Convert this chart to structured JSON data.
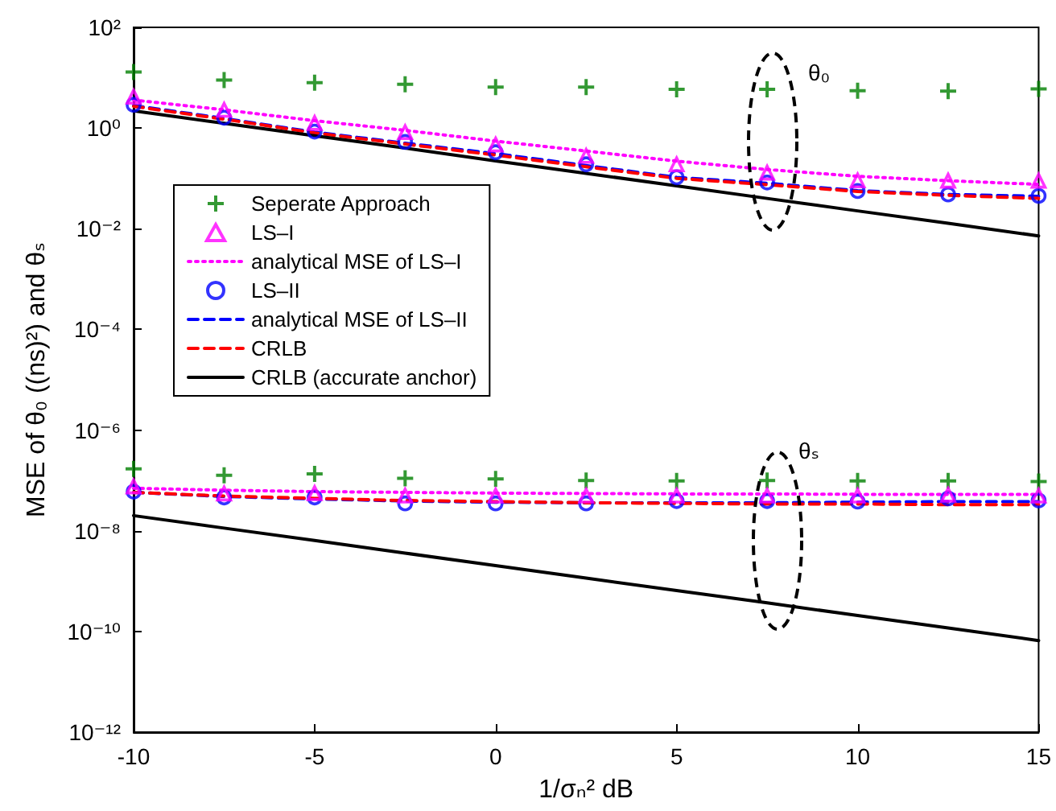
{
  "chart_data": {
    "type": "line",
    "xlabel": "1/σₙ² dB",
    "ylabel": "MSE of θ₀ ((ns)²) and θₛ",
    "x": [
      -10,
      -7.5,
      -5,
      -2.5,
      0,
      2.5,
      5,
      7.5,
      10,
      12.5,
      15
    ],
    "xlim": [
      -10,
      15
    ],
    "xticks": [
      -10,
      -5,
      0,
      5,
      10,
      15
    ],
    "log": "y",
    "ylim": [
      1e-12,
      100
    ],
    "yticks": [
      {
        "value": 1e-12,
        "label": "10⁻¹²"
      },
      {
        "value": 1e-10,
        "label": "10⁻¹⁰"
      },
      {
        "value": 1e-08,
        "label": "10⁻⁸"
      },
      {
        "value": 1e-06,
        "label": "10⁻⁶"
      },
      {
        "value": 0.0001,
        "label": "10⁻⁴"
      },
      {
        "value": 0.01,
        "label": "10⁻²"
      },
      {
        "value": 1,
        "label": "10⁰"
      },
      {
        "value": 100,
        "label": "10²"
      }
    ],
    "grid": false,
    "legend": "left",
    "annotations": [
      "θ₀",
      "θₛ"
    ],
    "series": [
      {
        "name": "Seperate Approach",
        "type": "scatter",
        "marker": "cross",
        "color": "#008000",
        "values": [
          13,
          9,
          8,
          7.4,
          6.5,
          6.5,
          5.9,
          5.9,
          5.5,
          5.4,
          6.0
        ]
      },
      {
        "name": "LS–I",
        "type": "scatter",
        "marker": "triangle",
        "color": "#ff00ff",
        "values": [
          4.2,
          2.3,
          1.26,
          0.83,
          0.47,
          0.28,
          0.19,
          0.13,
          0.091,
          0.09,
          0.09
        ]
      },
      {
        "name": "analytical MSE of LS–I",
        "line_style": "dotted",
        "color": "#ff00ff",
        "values": [
          3.6,
          2.3,
          1.4,
          0.9,
          0.55,
          0.35,
          0.22,
          0.15,
          0.11,
          0.09,
          0.076
        ]
      },
      {
        "name": "LS–II",
        "type": "scatter",
        "marker": "circle",
        "color": "#0000ff",
        "values": [
          2.9,
          1.6,
          0.85,
          0.53,
          0.33,
          0.19,
          0.105,
          0.083,
          0.056,
          0.048,
          0.045
        ]
      },
      {
        "name": "analytical MSE of LS–II",
        "line_style": "dashed",
        "color": "#0000ff",
        "values": [
          2.8,
          1.55,
          0.83,
          0.5,
          0.31,
          0.18,
          0.105,
          0.08,
          0.057,
          0.048,
          0.044
        ]
      },
      {
        "name": "CRLB",
        "line_style": "dashed",
        "color": "#ff0000",
        "values": [
          2.7,
          1.5,
          0.8,
          0.48,
          0.29,
          0.17,
          0.1,
          0.075,
          0.055,
          0.046,
          0.04
        ]
      },
      {
        "name": "CRLB (accurate anchor)",
        "line_style": "solid",
        "color": "#000000",
        "values": [
          2.2,
          1.24,
          0.7,
          0.4,
          0.223,
          0.126,
          0.071,
          0.04,
          0.0226,
          0.0128,
          0.0072
        ]
      },
      {
        "type": "scatter",
        "marker": "cross",
        "color": "#008000",
        "values": [
          1.7e-07,
          1.26e-07,
          1.35e-07,
          1.1e-07,
          1.07e-07,
          1e-07,
          9.8e-08,
          1e-07,
          9.8e-08,
          9.8e-08,
          9.5e-08
        ]
      },
      {
        "type": "scatter",
        "marker": "triangle",
        "color": "#ff00ff",
        "values": [
          7.6e-08,
          5.5e-08,
          5.6e-08,
          5e-08,
          5e-08,
          5e-08,
          5e-08,
          5e-08,
          5e-08,
          5.2e-08,
          5e-08
        ]
      },
      {
        "line_style": "dotted",
        "color": "#ff00ff",
        "values": [
          7e-08,
          6.4e-08,
          6e-08,
          5.8e-08,
          5.6e-08,
          5.5e-08,
          5.4e-08,
          5.4e-08,
          5.3e-08,
          5.3e-08,
          5.3e-08
        ]
      },
      {
        "type": "scatter",
        "marker": "circle",
        "color": "#0000ff",
        "values": [
          6e-08,
          4.6e-08,
          4.6e-08,
          3.5e-08,
          3.5e-08,
          3.5e-08,
          3.9e-08,
          3.9e-08,
          3.8e-08,
          4.4e-08,
          4e-08
        ]
      },
      {
        "line_style": "dashed",
        "color": "#0000ff",
        "values": [
          5.8e-08,
          4.8e-08,
          4.3e-08,
          3.9e-08,
          3.7e-08,
          3.6e-08,
          3.6e-08,
          3.6e-08,
          3.7e-08,
          3.8e-08,
          3.8e-08
        ]
      },
      {
        "line_style": "dashed",
        "color": "#ff0000",
        "values": [
          5.8e-08,
          4.9e-08,
          4.4e-08,
          4e-08,
          3.8e-08,
          3.6e-08,
          3.5e-08,
          3.4e-08,
          3.4e-08,
          3.3e-08,
          3.3e-08
        ]
      },
      {
        "line_style": "solid",
        "color": "#000000",
        "values": [
          2e-08,
          1.13e-08,
          6.4e-09,
          3.6e-09,
          2.04e-09,
          1.15e-09,
          6.5e-10,
          3.7e-10,
          2.07e-10,
          1.17e-10,
          6.6e-11
        ]
      }
    ]
  }
}
